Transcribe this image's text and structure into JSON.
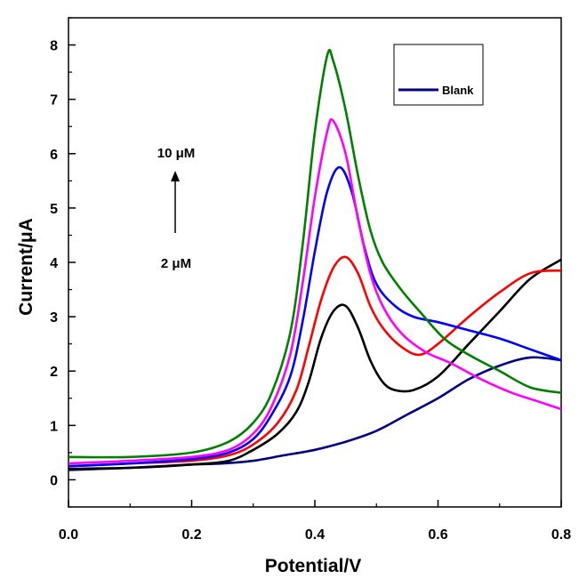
{
  "chart_data": {
    "type": "line",
    "xlabel": "Potential/V",
    "ylabel": "Current/μA",
    "xlim": [
      0.0,
      0.8
    ],
    "ylim": [
      -0.5,
      8.5
    ],
    "x_ticks": [
      "0.0",
      "0.2",
      "0.4",
      "0.6",
      "0.8"
    ],
    "y_ticks": [
      "0",
      "1",
      "2",
      "3",
      "4",
      "5",
      "6",
      "7",
      "8"
    ],
    "grid": false,
    "legend": {
      "placement": "top-right",
      "entries": [
        "Blank"
      ]
    },
    "annotations": {
      "top_label": "10 μM",
      "bottom_label": "2 μM",
      "arrow": "up"
    },
    "series": [
      {
        "name": "Blank",
        "color": "#000080",
        "x": [
          0.0,
          0.05,
          0.1,
          0.15,
          0.2,
          0.25,
          0.3,
          0.35,
          0.4,
          0.45,
          0.5,
          0.55,
          0.6,
          0.65,
          0.7,
          0.75,
          0.8
        ],
        "y": [
          0.18,
          0.2,
          0.22,
          0.25,
          0.28,
          0.3,
          0.35,
          0.45,
          0.55,
          0.7,
          0.9,
          1.2,
          1.5,
          1.85,
          2.1,
          2.25,
          2.2
        ]
      },
      {
        "color": "#000000",
        "x": [
          0.0,
          0.1,
          0.2,
          0.26,
          0.3,
          0.34,
          0.37,
          0.39,
          0.41,
          0.43,
          0.45,
          0.47,
          0.49,
          0.51,
          0.53,
          0.56,
          0.6,
          0.65,
          0.7,
          0.75,
          0.8
        ],
        "y": [
          0.2,
          0.22,
          0.28,
          0.35,
          0.55,
          0.85,
          1.25,
          1.8,
          2.6,
          3.1,
          3.2,
          2.8,
          2.2,
          1.8,
          1.65,
          1.65,
          1.9,
          2.5,
          3.1,
          3.7,
          4.05
        ]
      },
      {
        "color": "#ff0000",
        "x": [
          0.0,
          0.1,
          0.2,
          0.26,
          0.3,
          0.34,
          0.37,
          0.39,
          0.41,
          0.43,
          0.45,
          0.47,
          0.49,
          0.51,
          0.54,
          0.57,
          0.6,
          0.65,
          0.7,
          0.75,
          0.8
        ],
        "y": [
          0.25,
          0.3,
          0.35,
          0.45,
          0.65,
          1.05,
          1.65,
          2.45,
          3.3,
          3.9,
          4.1,
          3.8,
          3.2,
          2.8,
          2.45,
          2.3,
          2.5,
          3.0,
          3.45,
          3.8,
          3.85
        ]
      },
      {
        "color": "#0000ff",
        "x": [
          0.0,
          0.1,
          0.2,
          0.26,
          0.3,
          0.33,
          0.36,
          0.38,
          0.4,
          0.42,
          0.44,
          0.46,
          0.48,
          0.5,
          0.53,
          0.56,
          0.6,
          0.65,
          0.7,
          0.75,
          0.8
        ],
        "y": [
          0.25,
          0.3,
          0.38,
          0.5,
          0.75,
          1.2,
          1.9,
          2.9,
          4.2,
          5.3,
          5.75,
          5.3,
          4.3,
          3.6,
          3.2,
          3.0,
          2.9,
          2.75,
          2.6,
          2.4,
          2.2
        ]
      },
      {
        "color": "#ff00ff",
        "x": [
          0.0,
          0.1,
          0.2,
          0.26,
          0.3,
          0.33,
          0.36,
          0.38,
          0.4,
          0.42,
          0.43,
          0.45,
          0.47,
          0.49,
          0.51,
          0.54,
          0.58,
          0.62,
          0.67,
          0.72,
          0.76,
          0.8
        ],
        "y": [
          0.3,
          0.35,
          0.42,
          0.55,
          0.85,
          1.35,
          2.3,
          3.6,
          5.2,
          6.4,
          6.6,
          6.0,
          4.8,
          3.8,
          3.2,
          2.7,
          2.35,
          2.15,
          1.85,
          1.6,
          1.45,
          1.3
        ]
      },
      {
        "color": "#008000",
        "x": [
          0.0,
          0.1,
          0.2,
          0.26,
          0.3,
          0.33,
          0.36,
          0.38,
          0.4,
          0.42,
          0.43,
          0.45,
          0.47,
          0.49,
          0.51,
          0.54,
          0.57,
          0.61,
          0.65,
          0.7,
          0.75,
          0.8
        ],
        "y": [
          0.42,
          0.42,
          0.5,
          0.7,
          1.05,
          1.6,
          2.7,
          4.3,
          6.4,
          7.8,
          7.7,
          6.8,
          5.6,
          4.6,
          4.0,
          3.5,
          3.1,
          2.6,
          2.3,
          2.0,
          1.7,
          1.6
        ]
      }
    ]
  }
}
